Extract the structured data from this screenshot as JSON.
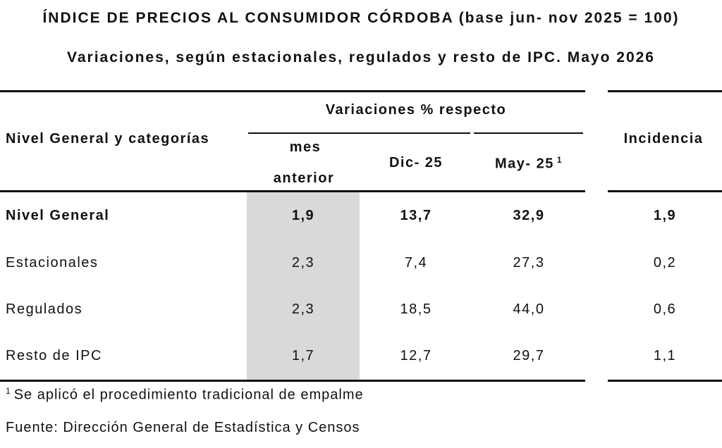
{
  "title": "ÍNDICE DE PRECIOS AL CONSUMIDOR CÓRDOBA (base jun- nov 2025 = 100)",
  "subtitle": "Variaciones, según estacionales, regulados y resto de IPC. Mayo 2026",
  "table": {
    "row_header": "Nivel General y categorías",
    "group_header": "Variaciones % respecto",
    "col_mes_line1": "mes",
    "col_mes_line2": "anterior",
    "col_dic": "Dic- 25",
    "col_may": "May- 25",
    "col_may_sup": "1",
    "col_incidencia": "Incidencia",
    "rows": [
      {
        "label": "Nivel General",
        "mes": "1,9",
        "dic": "13,7",
        "may": "32,9",
        "inc": "1,9",
        "bold": true
      },
      {
        "label": "Estacionales",
        "mes": "2,3",
        "dic": "7,4",
        "may": "27,3",
        "inc": "0,2",
        "bold": false
      },
      {
        "label": "Regulados",
        "mes": "2,3",
        "dic": "18,5",
        "may": "44,0",
        "inc": "0,6",
        "bold": false
      },
      {
        "label": "Resto de IPC",
        "mes": "1,7",
        "dic": "12,7",
        "may": "29,7",
        "inc": "1,1",
        "bold": false
      }
    ]
  },
  "footnote_sup": "1",
  "footnote": "Se aplicó el procedimiento tradicional de empalme",
  "source": "Fuente: Dirección General de Estadística y Censos"
}
